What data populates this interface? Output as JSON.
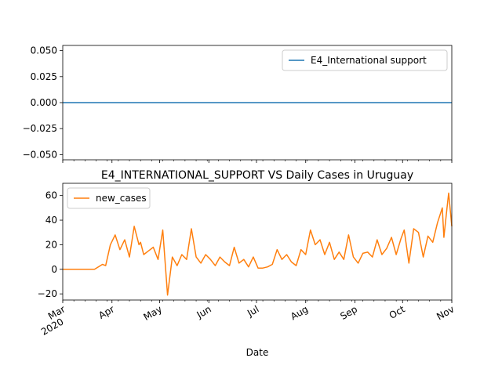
{
  "chart_data": [
    {
      "type": "line",
      "title": "",
      "xlabel": "",
      "ylabel": "",
      "ylim": [
        -0.055,
        0.055
      ],
      "yticks": [
        "0.050",
        "0.025",
        "0.000",
        "−0.025",
        "−0.050"
      ],
      "ytick_values": [
        0.05,
        0.025,
        0.0,
        -0.025,
        -0.05
      ],
      "legend_placement": "top-right",
      "series": [
        {
          "name": "E4_International support",
          "color": "#1f77b4",
          "x": [
            "2020-03-01",
            "2020-11-01"
          ],
          "values": [
            0,
            0
          ]
        }
      ]
    },
    {
      "type": "line",
      "title": "E4_INTERNATIONAL_SUPPORT VS Daily Cases in Uruguay",
      "xlabel": "Date",
      "ylabel": "",
      "ylim": [
        -25,
        70
      ],
      "yticks": [
        "60",
        "40",
        "20",
        "0",
        "−20"
      ],
      "ytick_values": [
        60,
        40,
        20,
        0,
        -20
      ],
      "xticks": [
        {
          "label": "Mar",
          "sub": "2020",
          "date": "2020-03-01"
        },
        {
          "label": "Apr",
          "sub": "",
          "date": "2020-04-01"
        },
        {
          "label": "May",
          "sub": "",
          "date": "2020-05-01"
        },
        {
          "label": "Jun",
          "sub": "",
          "date": "2020-06-01"
        },
        {
          "label": "Jul",
          "sub": "",
          "date": "2020-07-01"
        },
        {
          "label": "Aug",
          "sub": "",
          "date": "2020-08-01"
        },
        {
          "label": "Sep",
          "sub": "",
          "date": "2020-09-01"
        },
        {
          "label": "Oct",
          "sub": "",
          "date": "2020-10-01"
        },
        {
          "label": "Nov",
          "sub": "",
          "date": "2020-11-01"
        }
      ],
      "legend_placement": "top-left",
      "series": [
        {
          "name": "new_cases",
          "color": "#ff7f0e",
          "x": [
            "2020-03-01",
            "2020-03-06",
            "2020-03-11",
            "2020-03-16",
            "2020-03-21",
            "2020-03-26",
            "2020-03-28",
            "2020-03-31",
            "2020-04-03",
            "2020-04-06",
            "2020-04-09",
            "2020-04-12",
            "2020-04-15",
            "2020-04-18",
            "2020-04-19",
            "2020-04-21",
            "2020-04-24",
            "2020-04-27",
            "2020-04-30",
            "2020-05-03",
            "2020-05-06",
            "2020-05-09",
            "2020-05-12",
            "2020-05-15",
            "2020-05-18",
            "2020-05-21",
            "2020-05-24",
            "2020-05-27",
            "2020-05-30",
            "2020-06-02",
            "2020-06-05",
            "2020-06-08",
            "2020-06-11",
            "2020-06-14",
            "2020-06-17",
            "2020-06-20",
            "2020-06-23",
            "2020-06-26",
            "2020-06-29",
            "2020-07-02",
            "2020-07-05",
            "2020-07-08",
            "2020-07-11",
            "2020-07-14",
            "2020-07-17",
            "2020-07-20",
            "2020-07-23",
            "2020-07-26",
            "2020-07-29",
            "2020-08-01",
            "2020-08-04",
            "2020-08-07",
            "2020-08-10",
            "2020-08-13",
            "2020-08-16",
            "2020-08-19",
            "2020-08-22",
            "2020-08-25",
            "2020-08-28",
            "2020-08-31",
            "2020-09-03",
            "2020-09-06",
            "2020-09-09",
            "2020-09-12",
            "2020-09-15",
            "2020-09-18",
            "2020-09-21",
            "2020-09-24",
            "2020-09-27",
            "2020-09-30",
            "2020-10-02",
            "2020-10-05",
            "2020-10-08",
            "2020-10-11",
            "2020-10-14",
            "2020-10-17",
            "2020-10-20",
            "2020-10-23",
            "2020-10-26",
            "2020-10-27",
            "2020-10-29",
            "2020-10-30",
            "2020-11-01"
          ],
          "values": [
            0,
            0,
            0,
            0,
            0,
            4,
            3,
            20,
            28,
            16,
            24,
            10,
            35,
            20,
            22,
            12,
            15,
            18,
            8,
            32,
            -21,
            10,
            3,
            12,
            8,
            33,
            10,
            5,
            12,
            8,
            3,
            10,
            6,
            3,
            18,
            5,
            8,
            2,
            10,
            1,
            1,
            2,
            4,
            16,
            8,
            12,
            6,
            3,
            16,
            12,
            32,
            20,
            24,
            12,
            22,
            8,
            14,
            8,
            28,
            10,
            5,
            13,
            14,
            10,
            24,
            12,
            17,
            26,
            12,
            25,
            32,
            5,
            33,
            30,
            10,
            27,
            22,
            38,
            50,
            26,
            50,
            62,
            35
          ]
        }
      ]
    }
  ]
}
